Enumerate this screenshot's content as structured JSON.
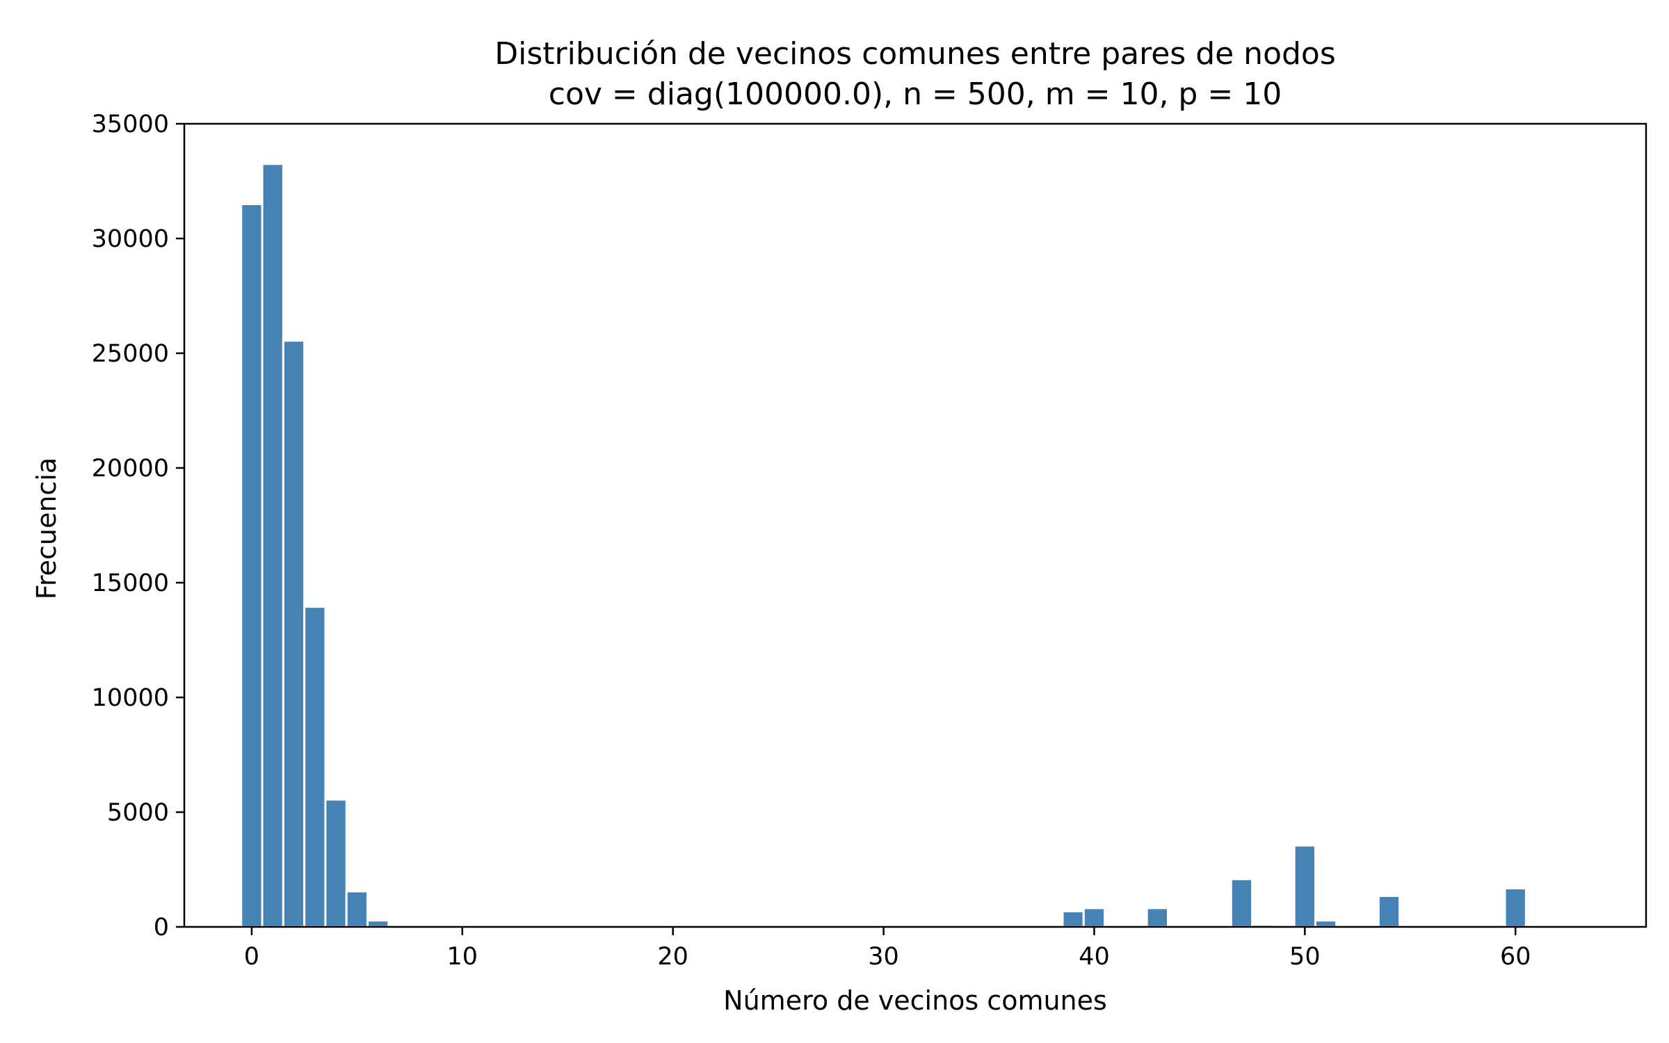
{
  "chart_data": {
    "type": "bar",
    "title": "Distribución de vecinos comunes entre pares de nodos",
    "subtitle": "cov = diag(100000.0), n = 500, m = 10, p = 10",
    "xlabel": "Número de vecinos comunes",
    "ylabel": "Frecuencia",
    "xlim": [
      -3.2,
      66.2
    ],
    "ylim": [
      0,
      35000
    ],
    "xticks": [
      0,
      10,
      20,
      30,
      40,
      50,
      60
    ],
    "yticks": [
      0,
      5000,
      10000,
      15000,
      20000,
      25000,
      30000,
      35000
    ],
    "bar_width": 1,
    "grid": false,
    "colors": {
      "bar": "#4682b4",
      "bar_edge": "#ffffff"
    },
    "x": [
      0,
      1,
      2,
      3,
      4,
      5,
      6,
      7,
      39,
      40,
      43,
      47,
      48,
      50,
      51,
      54,
      60,
      61
    ],
    "values": [
      31500,
      33250,
      25550,
      13950,
      5550,
      1550,
      280,
      15,
      680,
      820,
      820,
      2080,
      100,
      3550,
      280,
      1350,
      1680,
      80
    ]
  }
}
